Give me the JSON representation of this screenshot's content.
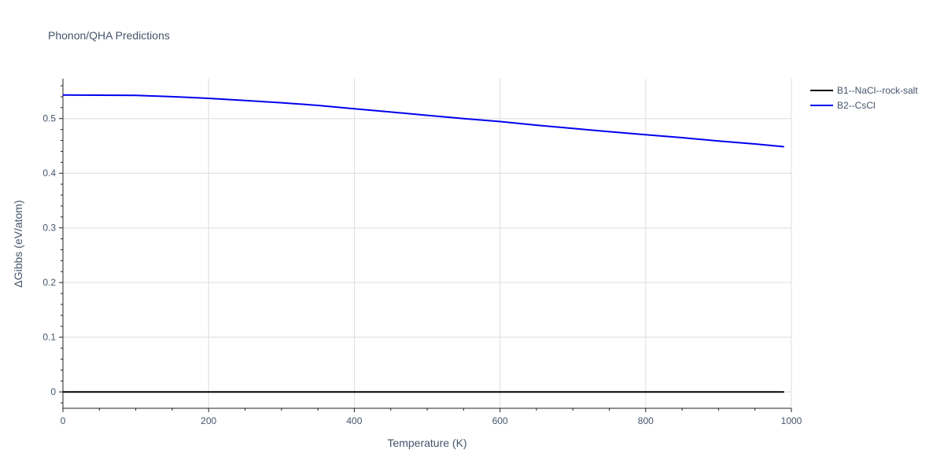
{
  "chart_data": {
    "type": "line",
    "title": "Phonon/QHA Predictions",
    "xlabel": "Temperature (K)",
    "ylabel": "ΔGibbs (eV/atom)",
    "xlim": [
      0,
      1000
    ],
    "ylim": [
      -0.03,
      0.573
    ],
    "x_ticks": [
      0,
      200,
      400,
      600,
      800,
      1000
    ],
    "y_ticks": [
      0,
      0.1,
      0.2,
      0.3,
      0.4,
      0.5
    ],
    "x_tick_labels": [
      "0",
      "200",
      "400",
      "600",
      "800",
      "1000"
    ],
    "y_tick_labels": [
      "0",
      "0.1",
      "0.2",
      "0.3",
      "0.4",
      "0.5"
    ],
    "grid": true,
    "legend_position": "top-right",
    "series": [
      {
        "name": "B1--NaCl--rock-salt",
        "color": "#000000",
        "x": [
          0,
          100,
          200,
          300,
          400,
          500,
          600,
          700,
          800,
          900,
          990
        ],
        "y": [
          0,
          0,
          0,
          0,
          0,
          0,
          0,
          0,
          0,
          0,
          0
        ]
      },
      {
        "name": "B2--CsCl",
        "color": "#0000ee",
        "x": [
          0,
          50,
          100,
          150,
          200,
          250,
          300,
          350,
          400,
          450,
          500,
          550,
          600,
          650,
          700,
          750,
          800,
          850,
          900,
          950,
          990
        ],
        "y": [
          0.543,
          0.5428,
          0.5424,
          0.54,
          0.537,
          0.533,
          0.529,
          0.524,
          0.518,
          0.512,
          0.506,
          0.5,
          0.4945,
          0.488,
          0.482,
          0.476,
          0.4705,
          0.465,
          0.459,
          0.4535,
          0.4485
        ]
      }
    ]
  }
}
